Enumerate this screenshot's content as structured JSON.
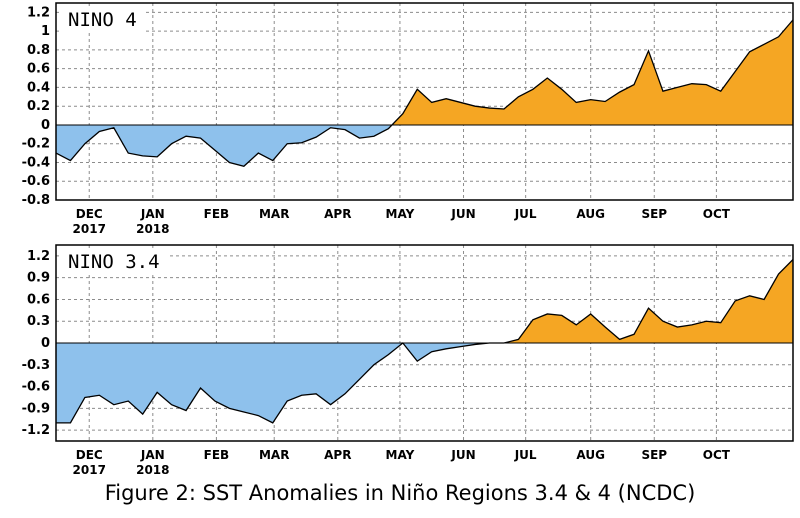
{
  "caption": "Figure 2: SST Anomalies in Niño Regions 3.4 & 4 (NCDC)",
  "colors": {
    "positive": "#f5a623",
    "negative": "#8ec1ec",
    "line": "#000000"
  },
  "chart_data": [
    {
      "type": "area",
      "title": "NINO 4",
      "xlabel": "",
      "ylabel": "",
      "x_ticks": [
        {
          "week": 2.3,
          "label": "DEC",
          "sub": "2017"
        },
        {
          "week": 6.7,
          "label": "JAN",
          "sub": "2018"
        },
        {
          "week": 11.1,
          "label": "FEB",
          "sub": ""
        },
        {
          "week": 15.1,
          "label": "MAR",
          "sub": ""
        },
        {
          "week": 19.5,
          "label": "APR",
          "sub": ""
        },
        {
          "week": 23.8,
          "label": "MAY",
          "sub": ""
        },
        {
          "week": 28.2,
          "label": "JUN",
          "sub": ""
        },
        {
          "week": 32.5,
          "label": "JUL",
          "sub": ""
        },
        {
          "week": 37.0,
          "label": "AUG",
          "sub": ""
        },
        {
          "week": 41.4,
          "label": "SEP",
          "sub": ""
        },
        {
          "week": 45.7,
          "label": "OCT",
          "sub": ""
        }
      ],
      "ylim": [
        -0.8,
        1.3
      ],
      "yticks": [
        -0.8,
        -0.6,
        -0.4,
        -0.2,
        0,
        0.2,
        0.4,
        0.6,
        0.8,
        1,
        1.2
      ],
      "ytick_labels": [
        "-0.8",
        "-0.6",
        "-0.4",
        "-0.2",
        "0",
        "0.2",
        "0.4",
        "0.6",
        "0.8",
        "1",
        "1.2"
      ],
      "grid": true,
      "x": [
        0,
        1,
        2,
        3,
        4,
        5,
        6,
        7,
        8,
        9,
        10,
        11,
        12,
        13,
        14,
        15,
        16,
        17,
        18,
        19,
        20,
        21,
        22,
        23,
        24,
        25,
        26,
        27,
        28,
        29,
        30,
        31,
        32,
        33,
        34,
        35,
        36,
        37,
        38,
        39,
        40,
        41,
        42,
        43,
        44,
        45,
        46,
        47,
        48,
        49,
        50,
        51
      ],
      "values": [
        -0.3,
        -0.38,
        -0.2,
        -0.07,
        -0.03,
        -0.3,
        -0.33,
        -0.34,
        -0.2,
        -0.12,
        -0.14,
        -0.27,
        -0.4,
        -0.44,
        -0.3,
        -0.38,
        -0.2,
        -0.19,
        -0.13,
        -0.03,
        -0.05,
        -0.14,
        -0.12,
        -0.04,
        0.12,
        0.38,
        0.24,
        0.28,
        0.24,
        0.2,
        0.18,
        0.17,
        0.3,
        0.38,
        0.5,
        0.38,
        0.24,
        0.27,
        0.25,
        0.35,
        0.43,
        0.79,
        0.36,
        0.4,
        0.44,
        0.43,
        0.36,
        0.57,
        0.78,
        0.86,
        0.94,
        1.12
      ]
    },
    {
      "type": "area",
      "title": "NINO 3.4",
      "xlabel": "",
      "ylabel": "",
      "x_ticks": [
        {
          "week": 2.3,
          "label": "DEC",
          "sub": "2017"
        },
        {
          "week": 6.7,
          "label": "JAN",
          "sub": "2018"
        },
        {
          "week": 11.1,
          "label": "FEB",
          "sub": ""
        },
        {
          "week": 15.1,
          "label": "MAR",
          "sub": ""
        },
        {
          "week": 19.5,
          "label": "APR",
          "sub": ""
        },
        {
          "week": 23.8,
          "label": "MAY",
          "sub": ""
        },
        {
          "week": 28.2,
          "label": "JUN",
          "sub": ""
        },
        {
          "week": 32.5,
          "label": "JUL",
          "sub": ""
        },
        {
          "week": 37.0,
          "label": "AUG",
          "sub": ""
        },
        {
          "week": 41.4,
          "label": "SEP",
          "sub": ""
        },
        {
          "week": 45.7,
          "label": "OCT",
          "sub": ""
        }
      ],
      "ylim": [
        -1.35,
        1.35
      ],
      "yticks": [
        -1.2,
        -0.9,
        -0.6,
        -0.3,
        0,
        0.3,
        0.6,
        0.9,
        1.2
      ],
      "ytick_labels": [
        "-1.2",
        "-0.9",
        "-0.6",
        "-0.3",
        "0",
        "0.3",
        "0.6",
        "0.9",
        "1.2"
      ],
      "grid": true,
      "x": [
        0,
        1,
        2,
        3,
        4,
        5,
        6,
        7,
        8,
        9,
        10,
        11,
        12,
        13,
        14,
        15,
        16,
        17,
        18,
        19,
        20,
        21,
        22,
        23,
        24,
        25,
        26,
        27,
        28,
        29,
        30,
        31,
        32,
        33,
        34,
        35,
        36,
        37,
        38,
        39,
        40,
        41,
        42,
        43,
        44,
        45,
        46,
        47,
        48,
        49,
        50,
        51
      ],
      "values": [
        -1.1,
        -1.1,
        -0.75,
        -0.72,
        -0.85,
        -0.8,
        -0.98,
        -0.68,
        -0.85,
        -0.93,
        -0.62,
        -0.8,
        -0.9,
        -0.95,
        -1.0,
        -1.1,
        -0.8,
        -0.72,
        -0.7,
        -0.85,
        -0.7,
        -0.5,
        -0.3,
        -0.16,
        0.0,
        -0.25,
        -0.12,
        -0.08,
        -0.05,
        -0.02,
        0.0,
        0.0,
        0.05,
        0.32,
        0.4,
        0.38,
        0.25,
        0.4,
        0.22,
        0.05,
        0.12,
        0.48,
        0.3,
        0.22,
        0.25,
        0.3,
        0.28,
        0.58,
        0.65,
        0.6,
        0.95,
        1.15
      ]
    }
  ]
}
